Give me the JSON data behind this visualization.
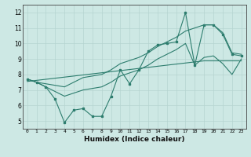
{
  "xlabel": "Humidex (Indice chaleur)",
  "x": [
    0,
    1,
    2,
    3,
    4,
    5,
    6,
    7,
    8,
    9,
    10,
    11,
    12,
    13,
    14,
    15,
    16,
    17,
    18,
    19,
    20,
    21,
    22,
    23
  ],
  "line_mid": [
    7.7,
    7.5,
    7.2,
    6.4,
    4.9,
    5.7,
    5.8,
    5.3,
    5.3,
    6.6,
    8.3,
    7.4,
    8.3,
    9.5,
    9.9,
    10.0,
    10.1,
    12.0,
    8.6,
    11.2,
    11.2,
    10.6,
    9.3,
    9.2
  ],
  "line_upper": [
    7.7,
    7.5,
    7.4,
    7.3,
    7.2,
    7.5,
    7.8,
    7.9,
    8.0,
    8.3,
    8.7,
    8.9,
    9.1,
    9.4,
    9.8,
    10.1,
    10.4,
    10.8,
    11.0,
    11.2,
    11.2,
    10.7,
    9.4,
    9.3
  ],
  "line_lower": [
    7.7,
    7.5,
    7.2,
    6.9,
    6.6,
    6.8,
    7.0,
    7.1,
    7.2,
    7.5,
    7.9,
    8.1,
    8.3,
    8.6,
    9.0,
    9.3,
    9.6,
    10.0,
    8.6,
    9.1,
    9.2,
    8.7,
    8.0,
    9.0
  ],
  "line_reg": [
    7.55,
    7.62,
    7.69,
    7.76,
    7.83,
    7.9,
    7.97,
    8.04,
    8.11,
    8.18,
    8.25,
    8.32,
    8.39,
    8.46,
    8.53,
    8.6,
    8.67,
    8.74,
    8.81,
    8.88,
    8.88,
    8.88,
    8.88,
    8.88
  ],
  "line_color": "#2d7d6e",
  "bg_color": "#cde8e4",
  "grid_color": "#b5d4d0",
  "ylim": [
    4.5,
    12.5
  ],
  "xlim": [
    -0.5,
    23.5
  ],
  "yticks": [
    5,
    6,
    7,
    8,
    9,
    10,
    11,
    12
  ],
  "xticks": [
    0,
    1,
    2,
    3,
    4,
    5,
    6,
    7,
    8,
    9,
    10,
    11,
    12,
    13,
    14,
    15,
    16,
    17,
    18,
    19,
    20,
    21,
    22,
    23
  ]
}
